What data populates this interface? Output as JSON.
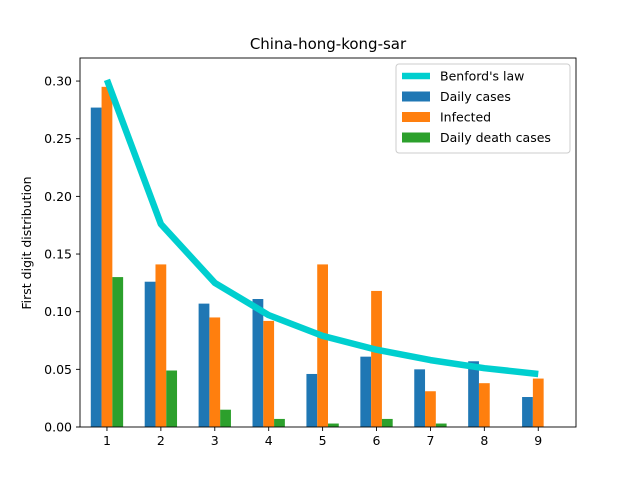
{
  "chart_data": {
    "type": "bar",
    "title": "China-hong-kong-sar",
    "xlabel": "",
    "ylabel": "First digit distribution",
    "categories": [
      "1",
      "2",
      "3",
      "4",
      "5",
      "6",
      "7",
      "8",
      "9"
    ],
    "xlim": [
      0.5,
      9.7
    ],
    "ylim": [
      0,
      0.32
    ],
    "yticks": [
      0.0,
      0.05,
      0.1,
      0.15,
      0.2,
      0.25,
      0.3
    ],
    "ytick_labels": [
      "0.00",
      "0.05",
      "0.10",
      "0.15",
      "0.20",
      "0.25",
      "0.30"
    ],
    "line": {
      "name": "Benford's law",
      "color": "#00cfcf",
      "values": [
        0.301,
        0.176,
        0.125,
        0.097,
        0.079,
        0.067,
        0.058,
        0.051,
        0.046
      ]
    },
    "series": [
      {
        "name": "Daily cases",
        "color": "#1f77b4",
        "values": [
          0.277,
          0.126,
          0.107,
          0.111,
          0.046,
          0.061,
          0.05,
          0.057,
          0.026
        ]
      },
      {
        "name": "Infected",
        "color": "#ff7f0e",
        "values": [
          0.295,
          0.141,
          0.095,
          0.092,
          0.141,
          0.118,
          0.031,
          0.038,
          0.042
        ]
      },
      {
        "name": "Daily death cases",
        "color": "#2ca02c",
        "values": [
          0.13,
          0.049,
          0.015,
          0.007,
          0.003,
          0.007,
          0.003,
          0.0,
          0.0
        ]
      }
    ],
    "legend_position": "top-right",
    "grid": false
  }
}
